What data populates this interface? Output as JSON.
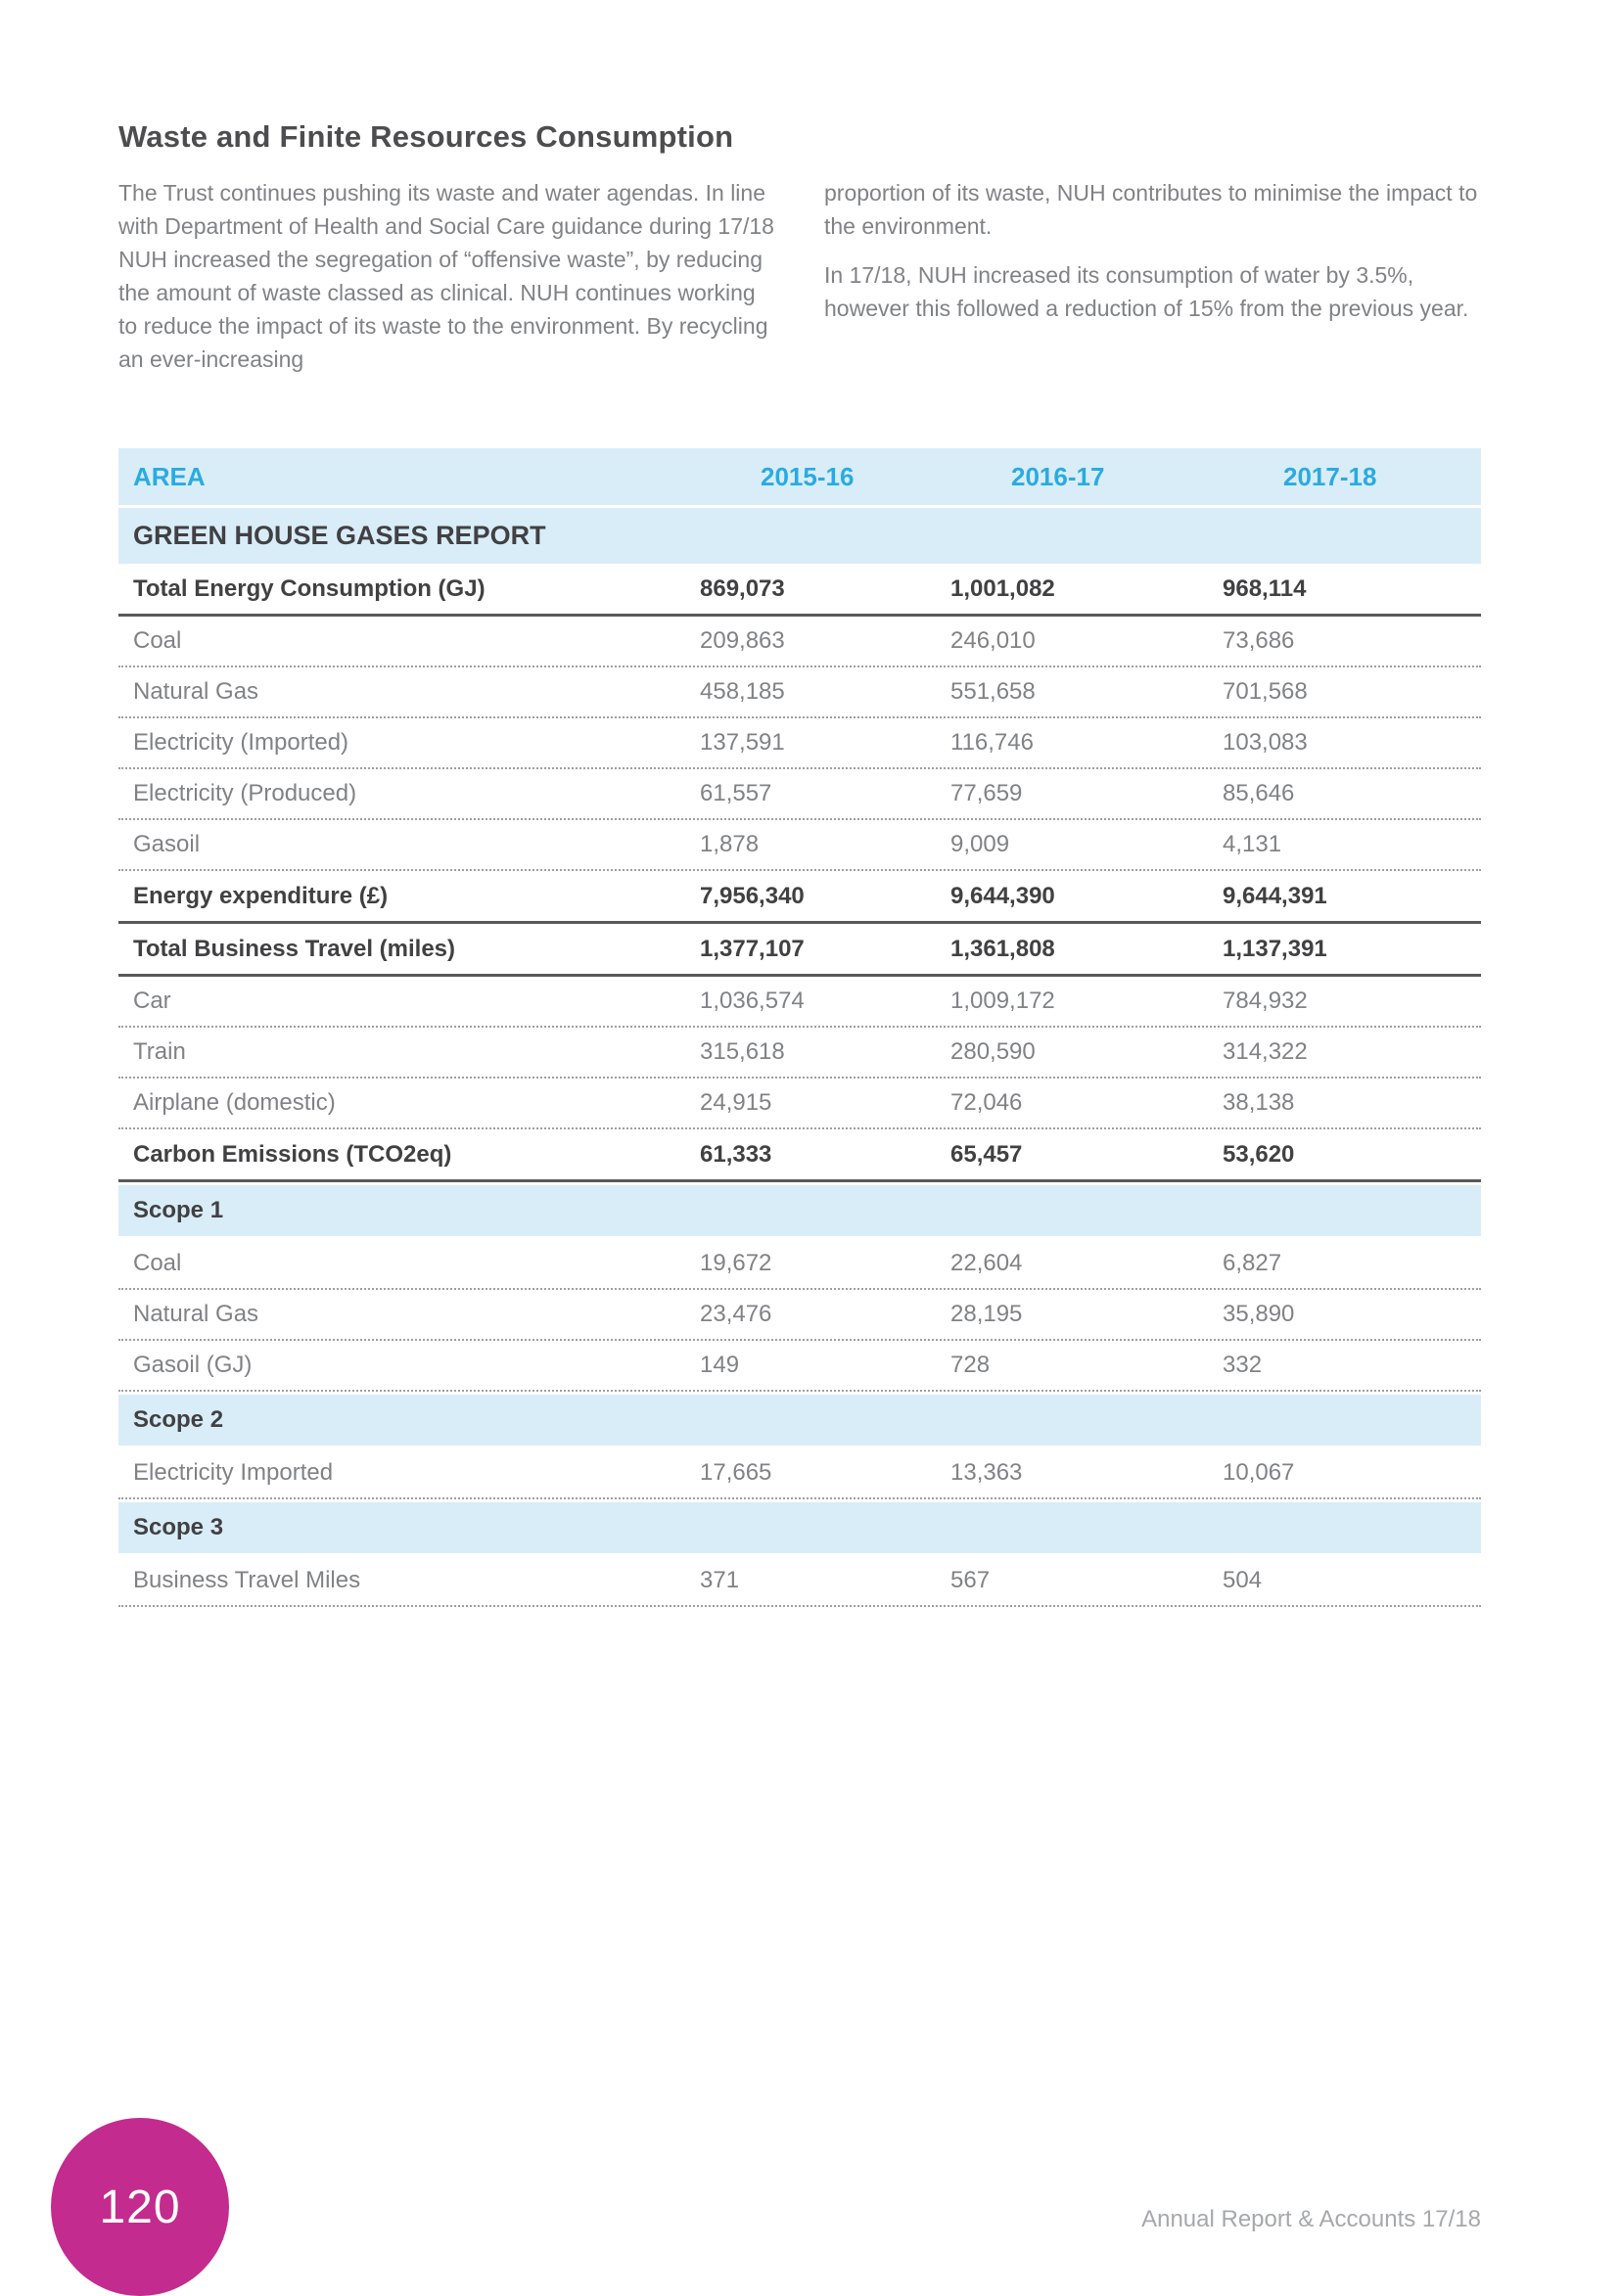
{
  "page": {
    "title": "Waste and Finite Resources Consumption",
    "intro_left": "The Trust continues pushing its waste and water agendas. In line with Department of Health and Social Care guidance during 17/18 NUH increased the segregation of “offensive waste”, by reducing the amount of waste classed as clinical. NUH continues working to reduce the impact of its waste to the environment. By recycling an ever-increasing",
    "intro_right_p1": "proportion of its waste, NUH contributes to minimise the impact to the environment.",
    "intro_right_p2": "In 17/18, NUH increased its consumption of water by 3.5%, however this followed a reduction of 15% from the previous year.",
    "page_number": "120",
    "footer": "Annual Report & Accounts 17/18"
  },
  "colors": {
    "accent_blue": "#29ABE2",
    "light_blue_bg": "#D9EDF8",
    "dark_text": "#414042",
    "body_gray": "#808285",
    "pink_badge": "#C32B8E"
  },
  "table": {
    "columns": [
      "AREA",
      "2015-16",
      "2016-17",
      "2017-18"
    ],
    "section_title": "GREEN HOUSE GASES REPORT",
    "rows": [
      {
        "type": "bold",
        "label": "Total Energy Consumption (GJ)",
        "values": [
          "869,073",
          "1,001,082",
          "968,114"
        ]
      },
      {
        "type": "normal",
        "label": "Coal",
        "values": [
          "209,863",
          "246,010",
          "73,686"
        ]
      },
      {
        "type": "normal",
        "label": "Natural Gas",
        "values": [
          "458,185",
          "551,658",
          "701,568"
        ]
      },
      {
        "type": "normal",
        "label": "Electricity (Imported)",
        "values": [
          "137,591",
          "116,746",
          "103,083"
        ]
      },
      {
        "type": "normal",
        "label": "Electricity (Produced)",
        "values": [
          "61,557",
          "77,659",
          "85,646"
        ]
      },
      {
        "type": "normal",
        "label": "Gasoil",
        "values": [
          "1,878",
          "9,009",
          "4,131"
        ]
      },
      {
        "type": "bold",
        "label": "Energy expenditure (£)",
        "values": [
          "7,956,340",
          "9,644,390",
          "9,644,391"
        ]
      },
      {
        "type": "bold",
        "label": "Total Business Travel (miles)",
        "values": [
          "1,377,107",
          "1,361,808",
          "1,137,391"
        ]
      },
      {
        "type": "normal",
        "label": "Car",
        "values": [
          "1,036,574",
          "1,009,172",
          "784,932"
        ]
      },
      {
        "type": "normal",
        "label": "Train",
        "values": [
          "315,618",
          "280,590",
          "314,322"
        ]
      },
      {
        "type": "normal",
        "label": "Airplane (domestic)",
        "values": [
          "24,915",
          "72,046",
          "38,138"
        ]
      },
      {
        "type": "bold",
        "label": "Carbon Emissions (TCO2eq)",
        "values": [
          "61,333",
          "65,457",
          "53,620"
        ]
      },
      {
        "type": "scope",
        "label": "Scope 1",
        "values": [
          "",
          "",
          ""
        ]
      },
      {
        "type": "normal",
        "label": "Coal",
        "values": [
          "19,672",
          "22,604",
          "6,827"
        ]
      },
      {
        "type": "normal",
        "label": "Natural Gas",
        "values": [
          "23,476",
          "28,195",
          "35,890"
        ]
      },
      {
        "type": "normal",
        "label": "Gasoil (GJ)",
        "values": [
          "149",
          "728",
          "332"
        ]
      },
      {
        "type": "scope",
        "label": "Scope 2",
        "values": [
          "",
          "",
          ""
        ]
      },
      {
        "type": "normal",
        "label": "Electricity Imported",
        "values": [
          "17,665",
          "13,363",
          "10,067"
        ]
      },
      {
        "type": "scope",
        "label": "Scope 3",
        "values": [
          "",
          "",
          ""
        ]
      },
      {
        "type": "normal",
        "label": "Business Travel Miles",
        "values": [
          "371",
          "567",
          "504"
        ]
      }
    ]
  }
}
